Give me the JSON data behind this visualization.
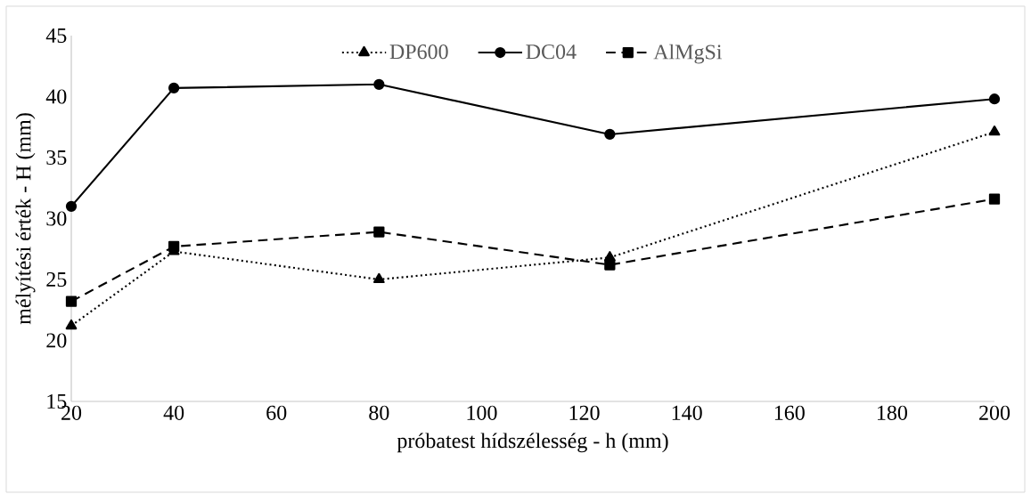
{
  "chart_data": {
    "type": "line",
    "xlabel": "próbatest hídszélesség - h (mm)",
    "ylabel": "mélyítési érték - H (mm)",
    "x": [
      20,
      40,
      80,
      125,
      200
    ],
    "series": [
      {
        "name": "DP600",
        "color": "#000000",
        "marker": "triangle",
        "line_style": "dotted",
        "values": [
          21.2,
          27.3,
          25.0,
          26.8,
          37.1
        ]
      },
      {
        "name": "DC04",
        "color": "#000000",
        "marker": "circle",
        "line_style": "solid",
        "values": [
          31.0,
          40.7,
          41.0,
          36.9,
          39.8
        ]
      },
      {
        "name": "AlMgSi",
        "color": "#000000",
        "marker": "square",
        "line_style": "dashed",
        "values": [
          23.2,
          27.7,
          28.9,
          26.2,
          31.6
        ]
      }
    ],
    "xlim": [
      20,
      200
    ],
    "xticks": [
      20,
      40,
      60,
      80,
      100,
      120,
      140,
      160,
      180,
      200
    ],
    "ylim": [
      15,
      45
    ],
    "yticks": [
      15,
      20,
      25,
      30,
      35,
      40,
      45
    ],
    "grid": false,
    "legend": "top"
  }
}
